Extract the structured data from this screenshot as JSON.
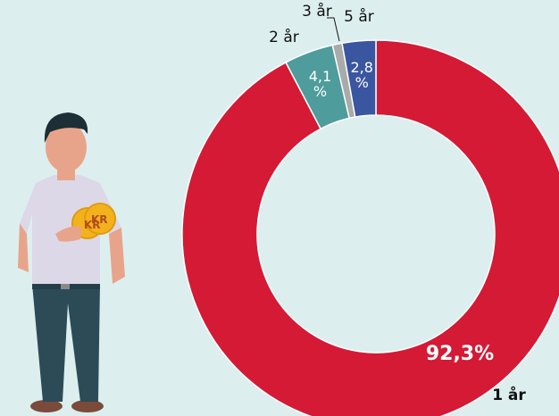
{
  "chart_data": {
    "type": "donut",
    "categories": [
      "1 år",
      "2 år",
      "3 år",
      "5 år"
    ],
    "values": [
      92.3,
      4.1,
      0.8,
      2.8
    ],
    "value_labels": [
      "92,3%",
      "4,1 %",
      null,
      "2,8 %"
    ],
    "colors": [
      "#d41a35",
      "#4e9c9c",
      "#a9abab",
      "#3a56a0"
    ]
  },
  "illustration": {
    "coin_text": "KR"
  }
}
